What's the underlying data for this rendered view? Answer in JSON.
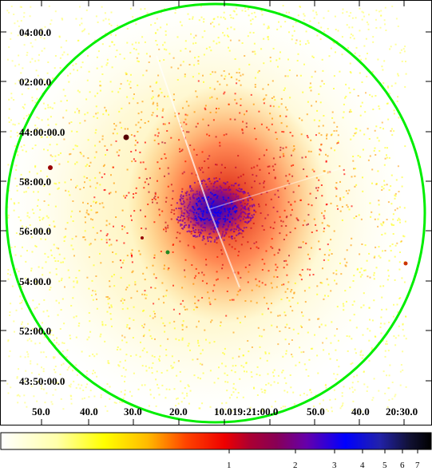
{
  "image": {
    "dec_labels": [
      "04:00.0",
      "02:00.0",
      "44:00:00.0",
      "58:00.0",
      "56:00.0",
      "54:00.0",
      "52:00.0",
      "43:50:00.0"
    ],
    "ra_labels": [
      "50.0",
      "40.0",
      "30.0",
      "20.0",
      "10.0",
      "19:21:00.0",
      "50.0",
      "40.0",
      "20:30.0"
    ],
    "region_color": "#00ee00",
    "colormap": [
      "#ffffff",
      "#ffff00",
      "#ff9900",
      "#ff0000",
      "#aa0044",
      "#7700aa",
      "#0000ff",
      "#000022"
    ]
  },
  "colorbar": {
    "labels": [
      "1",
      "2",
      "3",
      "4",
      "5",
      "6",
      "7"
    ]
  }
}
